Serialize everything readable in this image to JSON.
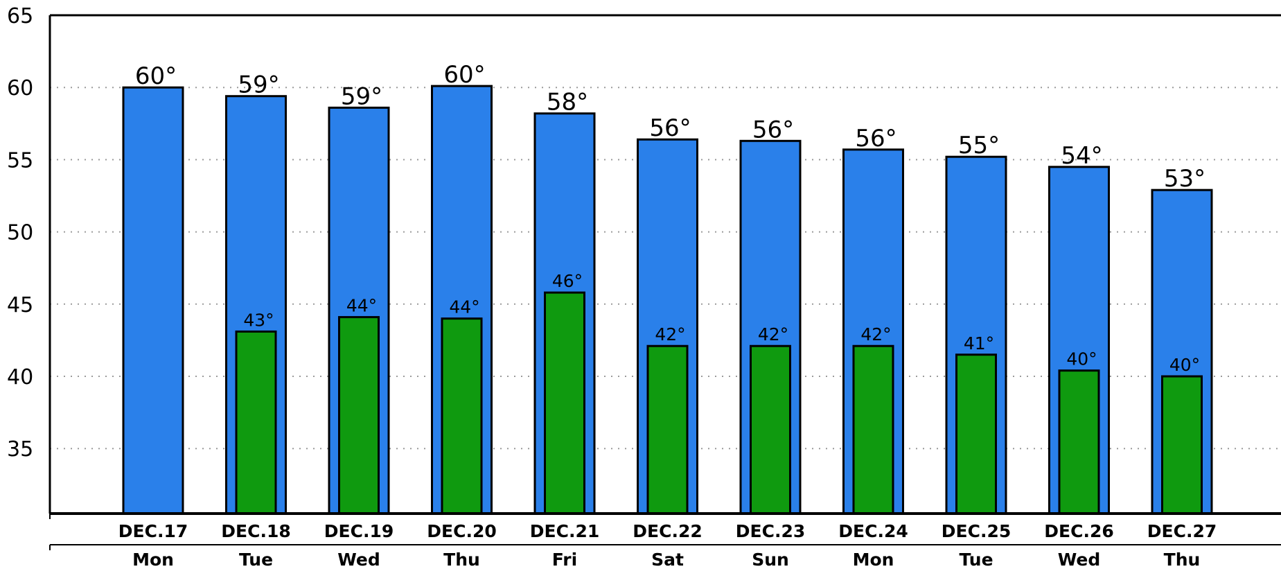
{
  "chart_data": {
    "type": "bar",
    "title": "",
    "xlabel": "",
    "ylabel": "",
    "ylim": [
      30.5,
      65
    ],
    "yticks": [
      35,
      40,
      45,
      50,
      55,
      60,
      65
    ],
    "grid": true,
    "categories": [
      "DEC.17",
      "DEC.18",
      "DEC.19",
      "DEC.20",
      "DEC.21",
      "DEC.22",
      "DEC.23",
      "DEC.24",
      "DEC.25",
      "DEC.26",
      "DEC.27"
    ],
    "weekdays": [
      "Mon",
      "Tue",
      "Wed",
      "Thu",
      "Fri",
      "Sat",
      "Sun",
      "Mon",
      "Tue",
      "Wed",
      "Thu"
    ],
    "series": [
      {
        "color": "#2a80ea",
        "values": [
          60.0,
          59.4,
          58.6,
          60.1,
          58.2,
          56.4,
          56.3,
          55.7,
          55.2,
          54.5,
          52.9
        ],
        "labels": [
          "60°",
          "59°",
          "59°",
          "60°",
          "58°",
          "56°",
          "56°",
          "56°",
          "55°",
          "54°",
          "53°"
        ]
      },
      {
        "color": "#0f9a0f",
        "values": [
          null,
          43.1,
          44.1,
          44.0,
          45.8,
          42.1,
          42.1,
          42.1,
          41.5,
          40.4,
          40.0
        ],
        "labels": [
          "",
          "43°",
          "44°",
          "44°",
          "46°",
          "42°",
          "42°",
          "42°",
          "41°",
          "40°",
          "40°"
        ]
      }
    ]
  }
}
